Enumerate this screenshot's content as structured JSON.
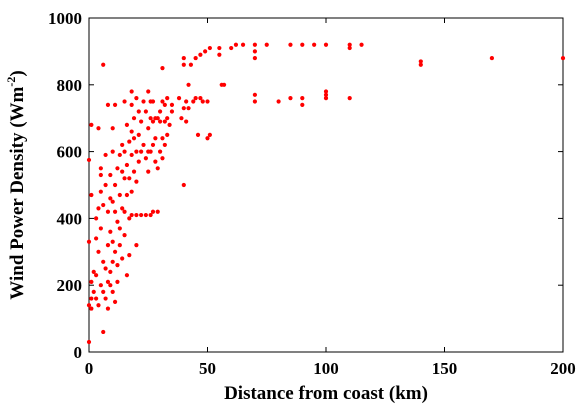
{
  "chart_data": {
    "type": "scatter",
    "title": "",
    "xlabel": "Distance from coast (km)",
    "ylabel_main": "Wind Power Density (Wm",
    "ylabel_sup": "-2",
    "ylabel_close": ")",
    "xlim": [
      0,
      200
    ],
    "ylim": [
      0,
      1000
    ],
    "xticks": [
      0,
      50,
      100,
      150,
      200
    ],
    "yticks": [
      0,
      200,
      400,
      600,
      800,
      1000
    ],
    "grid": false,
    "legend": "none",
    "marker_color": "#ff0000",
    "series": [
      {
        "points": [
          [
            0,
            575
          ],
          [
            0,
            140
          ],
          [
            0,
            30
          ],
          [
            0,
            330
          ],
          [
            1,
            680
          ],
          [
            1,
            470
          ],
          [
            1,
            210
          ],
          [
            1,
            130
          ],
          [
            1,
            160
          ],
          [
            2,
            240
          ],
          [
            2,
            180
          ],
          [
            3,
            400
          ],
          [
            3,
            340
          ],
          [
            3,
            160
          ],
          [
            3,
            230
          ],
          [
            4,
            670
          ],
          [
            4,
            430
          ],
          [
            4,
            300
          ],
          [
            4,
            140
          ],
          [
            5,
            550
          ],
          [
            5,
            530
          ],
          [
            5,
            480
          ],
          [
            5,
            370
          ],
          [
            5,
            200
          ],
          [
            6,
            860
          ],
          [
            6,
            440
          ],
          [
            6,
            270
          ],
          [
            6,
            180
          ],
          [
            6,
            60
          ],
          [
            7,
            590
          ],
          [
            7,
            500
          ],
          [
            7,
            250
          ],
          [
            7,
            160
          ],
          [
            8,
            740
          ],
          [
            8,
            420
          ],
          [
            8,
            320
          ],
          [
            8,
            210
          ],
          [
            8,
            130
          ],
          [
            9,
            530
          ],
          [
            9,
            460
          ],
          [
            9,
            360
          ],
          [
            9,
            240
          ],
          [
            9,
            200
          ],
          [
            10,
            670
          ],
          [
            10,
            600
          ],
          [
            10,
            450
          ],
          [
            10,
            330
          ],
          [
            10,
            270
          ],
          [
            10,
            180
          ],
          [
            11,
            740
          ],
          [
            11,
            500
          ],
          [
            11,
            420
          ],
          [
            11,
            300
          ],
          [
            11,
            150
          ],
          [
            12,
            550
          ],
          [
            12,
            390
          ],
          [
            12,
            260
          ],
          [
            12,
            210
          ],
          [
            13,
            590
          ],
          [
            13,
            470
          ],
          [
            13,
            370
          ],
          [
            13,
            320
          ],
          [
            14,
            620
          ],
          [
            14,
            540
          ],
          [
            14,
            430
          ],
          [
            14,
            280
          ],
          [
            15,
            750
          ],
          [
            15,
            600
          ],
          [
            15,
            520
          ],
          [
            15,
            420
          ],
          [
            15,
            350
          ],
          [
            16,
            680
          ],
          [
            16,
            560
          ],
          [
            16,
            470
          ],
          [
            16,
            230
          ],
          [
            17,
            630
          ],
          [
            17,
            520
          ],
          [
            17,
            400
          ],
          [
            17,
            290
          ],
          [
            18,
            780
          ],
          [
            18,
            740
          ],
          [
            18,
            660
          ],
          [
            18,
            590
          ],
          [
            18,
            480
          ],
          [
            18,
            410
          ],
          [
            19,
            700
          ],
          [
            19,
            640
          ],
          [
            19,
            540
          ],
          [
            20,
            760
          ],
          [
            20,
            600
          ],
          [
            20,
            510
          ],
          [
            20,
            410
          ],
          [
            20,
            320
          ],
          [
            21,
            720
          ],
          [
            21,
            650
          ],
          [
            21,
            570
          ],
          [
            22,
            690
          ],
          [
            22,
            600
          ],
          [
            22,
            410
          ],
          [
            23,
            750
          ],
          [
            23,
            620
          ],
          [
            24,
            720
          ],
          [
            24,
            580
          ],
          [
            24,
            410
          ],
          [
            25,
            780
          ],
          [
            25,
            670
          ],
          [
            25,
            600
          ],
          [
            25,
            540
          ],
          [
            26,
            750
          ],
          [
            26,
            700
          ],
          [
            26,
            600
          ],
          [
            26,
            410
          ],
          [
            27,
            750
          ],
          [
            27,
            690
          ],
          [
            27,
            620
          ],
          [
            27,
            420
          ],
          [
            28,
            700
          ],
          [
            28,
            640
          ],
          [
            28,
            570
          ],
          [
            29,
            700
          ],
          [
            29,
            550
          ],
          [
            29,
            420
          ],
          [
            30,
            720
          ],
          [
            30,
            690
          ],
          [
            30,
            600
          ],
          [
            31,
            850
          ],
          [
            31,
            750
          ],
          [
            31,
            640
          ],
          [
            31,
            580
          ],
          [
            32,
            740
          ],
          [
            32,
            690
          ],
          [
            32,
            620
          ],
          [
            33,
            760
          ],
          [
            33,
            700
          ],
          [
            33,
            650
          ],
          [
            34,
            680
          ],
          [
            35,
            740
          ],
          [
            35,
            720
          ],
          [
            38,
            760
          ],
          [
            39,
            700
          ],
          [
            40,
            860
          ],
          [
            40,
            880
          ],
          [
            40,
            730
          ],
          [
            40,
            500
          ],
          [
            41,
            750
          ],
          [
            41,
            690
          ],
          [
            42,
            730
          ],
          [
            42,
            800
          ],
          [
            43,
            860
          ],
          [
            44,
            750
          ],
          [
            45,
            880
          ],
          [
            45,
            760
          ],
          [
            46,
            650
          ],
          [
            47,
            890
          ],
          [
            47,
            760
          ],
          [
            48,
            750
          ],
          [
            49,
            900
          ],
          [
            50,
            750
          ],
          [
            50,
            640
          ],
          [
            51,
            910
          ],
          [
            51,
            650
          ],
          [
            55,
            890
          ],
          [
            55,
            910
          ],
          [
            56,
            800
          ],
          [
            57,
            800
          ],
          [
            60,
            910
          ],
          [
            62,
            920
          ],
          [
            65,
            920
          ],
          [
            70,
            900
          ],
          [
            70,
            880
          ],
          [
            70,
            920
          ],
          [
            70,
            750
          ],
          [
            70,
            770
          ],
          [
            75,
            920
          ],
          [
            80,
            750
          ],
          [
            85,
            920
          ],
          [
            85,
            760
          ],
          [
            90,
            740
          ],
          [
            90,
            760
          ],
          [
            90,
            920
          ],
          [
            95,
            920
          ],
          [
            100,
            920
          ],
          [
            100,
            780
          ],
          [
            100,
            770
          ],
          [
            100,
            760
          ],
          [
            110,
            910
          ],
          [
            110,
            920
          ],
          [
            110,
            760
          ],
          [
            115,
            920
          ],
          [
            140,
            860
          ],
          [
            140,
            870
          ],
          [
            170,
            880
          ],
          [
            200,
            880
          ]
        ]
      }
    ]
  }
}
